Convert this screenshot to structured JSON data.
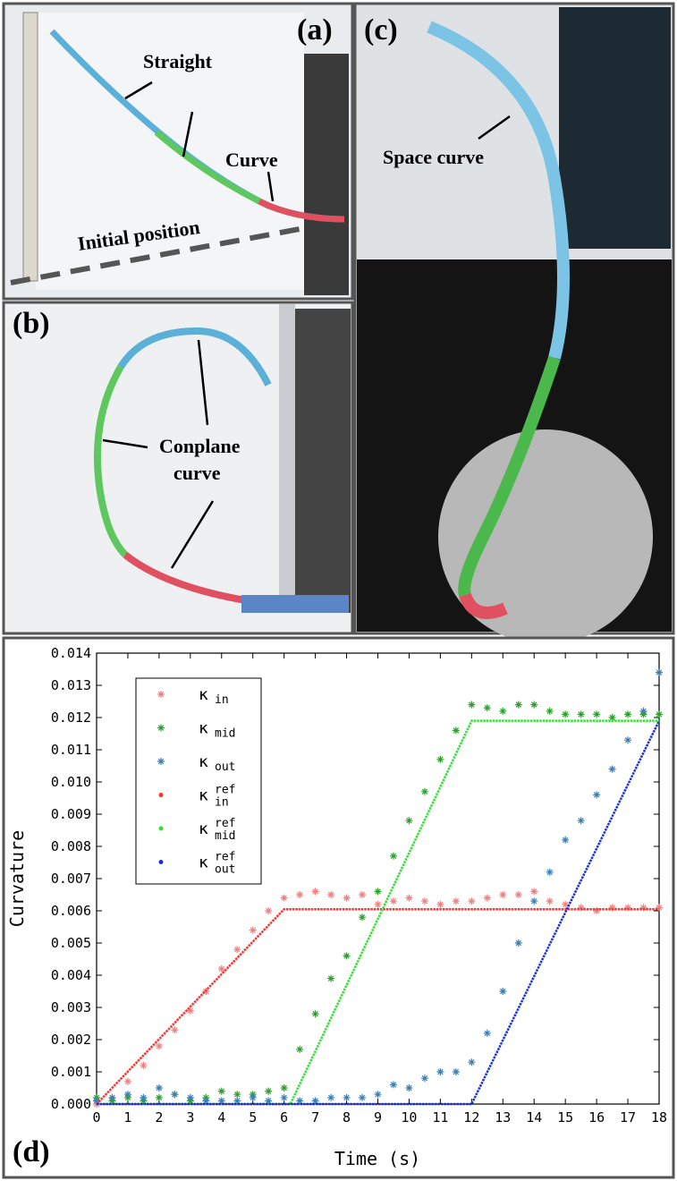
{
  "panels": [
    {
      "label": "(a)",
      "annotations": [
        "Straight",
        "Curve",
        "Initial position"
      ]
    },
    {
      "label": "(b)",
      "annotations": [
        "Conplane",
        "curve"
      ]
    },
    {
      "label": "(c)",
      "annotations": [
        "Space curve"
      ]
    }
  ],
  "chart_data": {
    "type": "scatter",
    "panel_label": "(d)",
    "x_label": "Time (s)",
    "y_label": "Curvature",
    "xlim": [
      0,
      18
    ],
    "xticks": [
      0,
      1,
      2,
      3,
      4,
      5,
      6,
      7,
      8,
      9,
      10,
      11,
      12,
      13,
      14,
      15,
      16,
      17,
      18
    ],
    "ylim": [
      0,
      0.014
    ],
    "yticks": [
      {
        "value": 0,
        "label": "0.000"
      },
      0.001,
      0.002,
      0.003,
      0.004,
      0.005,
      0.006,
      0.007,
      0.008,
      0.009,
      {
        "value": 0.01,
        "label": "0.010"
      },
      0.011,
      0.012,
      0.013,
      0.014
    ],
    "series": [
      {
        "name": "κ",
        "subscript": "in",
        "color": "#f08080",
        "marker": "star",
        "x": [
          0,
          0.5,
          1,
          1.5,
          2,
          2.5,
          3,
          3.5,
          4,
          4.5,
          5,
          5.5,
          6,
          6.5,
          7,
          7.5,
          8,
          8.5,
          9,
          9.5,
          10,
          10.5,
          11,
          11.5,
          12,
          12.5,
          13,
          13.5,
          14,
          14.5,
          15,
          15.5,
          16,
          16.5,
          17,
          17.5,
          18
        ],
        "values": [
          0,
          0.0002,
          0.0007,
          0.0012,
          0.0018,
          0.0023,
          0.0029,
          0.0035,
          0.0042,
          0.0048,
          0.0054,
          0.006,
          0.0064,
          0.0065,
          0.0066,
          0.0065,
          0.0064,
          0.0065,
          0.0062,
          0.0063,
          0.0064,
          0.0063,
          0.0062,
          0.0063,
          0.0063,
          0.0064,
          0.0065,
          0.0065,
          0.0066,
          0.0063,
          0.0062,
          0.0061,
          0.006,
          0.0061,
          0.0061,
          0.0061,
          0.0061
        ]
      },
      {
        "name": "κ",
        "subscript": "mid",
        "color": "#2ca02c",
        "marker": "star",
        "x": [
          0,
          0.5,
          1,
          1.5,
          2,
          2.5,
          3,
          3.5,
          4,
          4.5,
          5,
          5.5,
          6,
          6.5,
          7,
          7.5,
          8,
          8.5,
          9,
          9.5,
          10,
          10.5,
          11,
          11.5,
          12,
          12.5,
          13,
          13.5,
          14,
          14.5,
          15,
          15.5,
          16,
          16.5,
          17,
          17.5,
          18
        ],
        "values": [
          0.0002,
          0.0001,
          0.0002,
          0.0001,
          0.0002,
          0.0003,
          0.0001,
          0.0002,
          0.0004,
          0.0003,
          0.0003,
          0.0004,
          0.0005,
          0.0017,
          0.0028,
          0.0039,
          0.0046,
          0.0058,
          0.0066,
          0.0077,
          0.0088,
          0.0097,
          0.0107,
          0.0116,
          0.0124,
          0.0123,
          0.0122,
          0.0124,
          0.0124,
          0.0122,
          0.0121,
          0.0121,
          0.0121,
          0.012,
          0.0121,
          0.0121,
          0.0121
        ]
      },
      {
        "name": "κ",
        "subscript": "out",
        "color": "#3a7fb5",
        "marker": "star",
        "x": [
          0,
          0.5,
          1,
          1.5,
          2,
          2.5,
          3,
          3.5,
          4,
          4.5,
          5,
          5.5,
          6,
          6.5,
          7,
          7.5,
          8,
          8.5,
          9,
          9.5,
          10,
          10.5,
          11,
          11.5,
          12,
          12.5,
          13,
          13.5,
          14,
          14.5,
          15,
          15.5,
          16,
          16.5,
          17,
          17.5,
          18
        ],
        "values": [
          0.0001,
          0.0002,
          0.0003,
          0.0002,
          0.0005,
          0.0003,
          0.0002,
          0.0001,
          0.0001,
          0.0001,
          0.0002,
          0.0001,
          0.0002,
          0.0001,
          0.0001,
          0.0002,
          0.0002,
          0.0002,
          0.0003,
          0.0006,
          0.0005,
          0.0008,
          0.001,
          0.001,
          0.0013,
          0.0022,
          0.0035,
          0.005,
          0.0063,
          0.0072,
          0.0082,
          0.0088,
          0.0096,
          0.0104,
          0.0113,
          0.0122,
          0.0134
        ]
      },
      {
        "name": "κ",
        "superscript": "ref",
        "subscript": "in",
        "color": "#ff3030",
        "marker": "dot",
        "x": [
          0,
          6,
          18
        ],
        "values": [
          0,
          0.00605,
          0.00605
        ]
      },
      {
        "name": "κ",
        "superscript": "ref",
        "subscript": "mid",
        "color": "#33e033",
        "marker": "dot",
        "x": [
          0,
          6.2,
          12,
          18
        ],
        "values": [
          0,
          0,
          0.0119,
          0.0119
        ]
      },
      {
        "name": "κ",
        "superscript": "ref",
        "subscript": "out",
        "color": "#1a2fe0",
        "marker": "dot",
        "x": [
          0,
          12,
          18
        ],
        "values": [
          0,
          0,
          0.0119
        ]
      }
    ]
  }
}
